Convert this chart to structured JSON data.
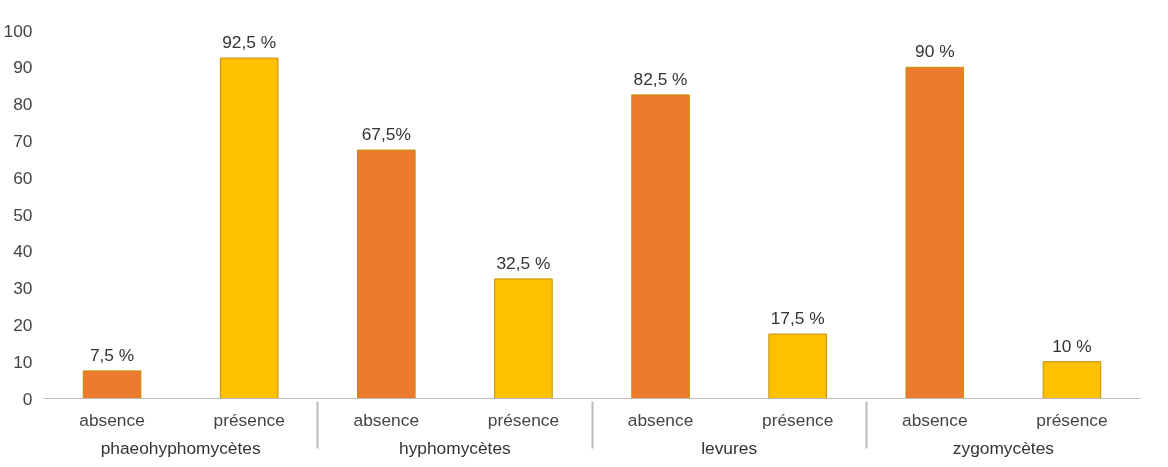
{
  "chart_data": {
    "type": "bar",
    "categories": [
      "absence",
      "présence",
      "absence",
      "présence",
      "absence",
      "présence",
      "absence",
      "présence"
    ],
    "values": [
      7.5,
      92.5,
      67.5,
      32.5,
      82.5,
      17.5,
      90,
      10
    ],
    "value_labels": [
      "7,5 %",
      "92,5 %",
      "67,5%",
      "32,5 %",
      "82,5 %",
      "17,5 %",
      "90 %",
      "10 %"
    ],
    "colors": [
      "#ee7a30",
      "#ffc000",
      "#ee7a30",
      "#ffc000",
      "#ee7a30",
      "#ffc000",
      "#ee7a30",
      "#ffc000"
    ],
    "annotations": [
      "phaeohyphomycètes",
      "hyphomycètes",
      "levures",
      "zygomycètes"
    ],
    "ylim": [
      0,
      100
    ],
    "yticks": [
      0,
      10,
      20,
      30,
      40,
      50,
      60,
      70,
      80,
      90,
      100
    ],
    "grid": false
  }
}
